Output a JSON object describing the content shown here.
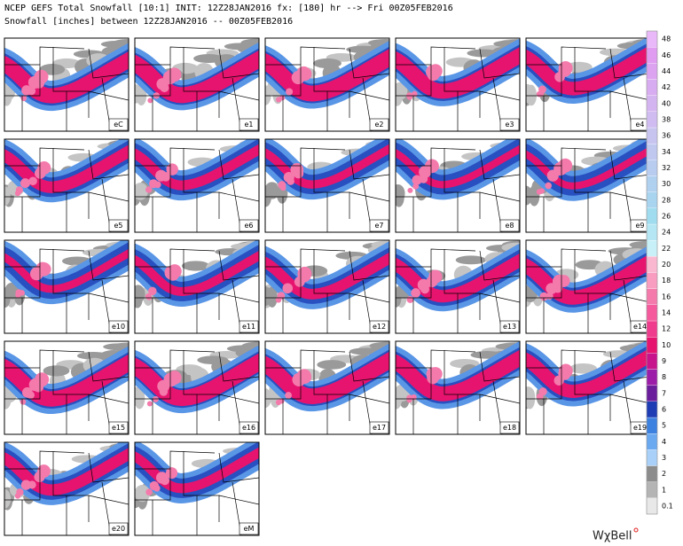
{
  "header": {
    "line1": "NCEP GEFS Total Snowfall [10:1] INIT: 12Z28JAN2016 fx: [180] hr --> Fri 00Z05FEB2016",
    "line2": "Snowfall [inches] between 12Z28JAN2016 -- 00Z05FEB2016"
  },
  "panels": [
    "eC",
    "e1",
    "e2",
    "e3",
    "e4",
    "e5",
    "e6",
    "e7",
    "e8",
    "e9",
    "e10",
    "e11",
    "e12",
    "e13",
    "e14",
    "e15",
    "e16",
    "e17",
    "e18",
    "e19",
    "e20",
    "eM"
  ],
  "colorbar": {
    "levels": [
      0.1,
      1,
      2,
      3,
      4,
      5,
      6,
      7,
      8,
      9,
      10,
      12,
      14,
      16,
      18,
      20,
      22,
      24,
      26,
      28,
      30,
      32,
      34,
      36,
      38,
      40,
      42,
      44,
      46,
      48
    ],
    "colors": [
      "#e8e8e8",
      "#b4b4b4",
      "#8c8c8c",
      "#a8d0f8",
      "#6aa8f0",
      "#3c80e0",
      "#1e3cb4",
      "#6a1e9c",
      "#9c1ea8",
      "#c8148c",
      "#e6146e",
      "#f03c8c",
      "#f45a9c",
      "#f47aac",
      "#f89cc0",
      "#fab8d0",
      "#c8f0f8",
      "#b4e6f4",
      "#a0dcf0",
      "#a8d4f0",
      "#b0d0f0",
      "#b8ccf0",
      "#c0c8f0",
      "#c8c4f0",
      "#d0bcf0",
      "#d4b4f0",
      "#d8acf0",
      "#dca4f0",
      "#e09cf0",
      "#e8b8f8"
    ]
  },
  "logo": "WχBell"
}
